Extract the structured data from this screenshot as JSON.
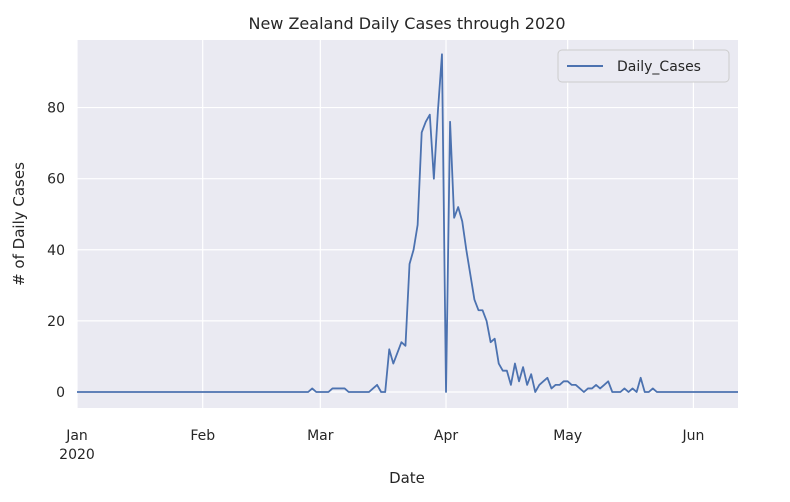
{
  "chart_data": {
    "type": "line",
    "title": "New Zealand Daily Cases through 2020",
    "xlabel": "Date",
    "ylabel": "# of Daily Cases",
    "x_ticks": [
      {
        "date": "2020-01-01",
        "label": "Jan",
        "sublabel": "2020"
      },
      {
        "date": "2020-02-01",
        "label": "Feb",
        "sublabel": ""
      },
      {
        "date": "2020-03-01",
        "label": "Mar",
        "sublabel": ""
      },
      {
        "date": "2020-04-01",
        "label": "Apr",
        "sublabel": ""
      },
      {
        "date": "2020-05-01",
        "label": "May",
        "sublabel": ""
      },
      {
        "date": "2020-06-01",
        "label": "Jun",
        "sublabel": ""
      }
    ],
    "y_ticks": [
      0,
      20,
      40,
      60,
      80
    ],
    "xlim": [
      "2020-01-01",
      "2020-06-12"
    ],
    "ylim": [
      -4.5,
      99
    ],
    "grid": true,
    "legend_position": "top-right",
    "colors": {
      "line": "#4c72b0",
      "plot_bg": "#eaeaf2",
      "grid": "#ffffff"
    },
    "series": [
      {
        "name": "Daily_Cases",
        "x": [
          "2020-01-01",
          "2020-02-27",
          "2020-02-28",
          "2020-02-29",
          "2020-03-01",
          "2020-03-02",
          "2020-03-03",
          "2020-03-04",
          "2020-03-05",
          "2020-03-06",
          "2020-03-07",
          "2020-03-08",
          "2020-03-09",
          "2020-03-10",
          "2020-03-11",
          "2020-03-12",
          "2020-03-13",
          "2020-03-14",
          "2020-03-15",
          "2020-03-16",
          "2020-03-17",
          "2020-03-18",
          "2020-03-19",
          "2020-03-20",
          "2020-03-21",
          "2020-03-22",
          "2020-03-23",
          "2020-03-24",
          "2020-03-25",
          "2020-03-26",
          "2020-03-27",
          "2020-03-28",
          "2020-03-29",
          "2020-03-30",
          "2020-03-31",
          "2020-04-01",
          "2020-04-02",
          "2020-04-03",
          "2020-04-04",
          "2020-04-05",
          "2020-04-06",
          "2020-04-07",
          "2020-04-08",
          "2020-04-09",
          "2020-04-10",
          "2020-04-11",
          "2020-04-12",
          "2020-04-13",
          "2020-04-14",
          "2020-04-15",
          "2020-04-16",
          "2020-04-17",
          "2020-04-18",
          "2020-04-19",
          "2020-04-20",
          "2020-04-21",
          "2020-04-22",
          "2020-04-23",
          "2020-04-24",
          "2020-04-25",
          "2020-04-26",
          "2020-04-27",
          "2020-04-28",
          "2020-04-29",
          "2020-04-30",
          "2020-05-01",
          "2020-05-02",
          "2020-05-03",
          "2020-05-04",
          "2020-05-05",
          "2020-05-06",
          "2020-05-07",
          "2020-05-08",
          "2020-05-09",
          "2020-05-10",
          "2020-05-11",
          "2020-05-12",
          "2020-05-13",
          "2020-05-14",
          "2020-05-15",
          "2020-05-16",
          "2020-05-17",
          "2020-05-18",
          "2020-05-19",
          "2020-05-20",
          "2020-05-21",
          "2020-05-22",
          "2020-05-23",
          "2020-05-24",
          "2020-05-25",
          "2020-06-12"
        ],
        "y": [
          0,
          0,
          1,
          0,
          0,
          0,
          0,
          1,
          1,
          1,
          1,
          0,
          0,
          0,
          0,
          0,
          0,
          1,
          2,
          0,
          0,
          12,
          8,
          11,
          14,
          13,
          36,
          40,
          47,
          73,
          76,
          78,
          60,
          79,
          95,
          0,
          76,
          49,
          52,
          48,
          40,
          33,
          26,
          23,
          23,
          20,
          14,
          15,
          8,
          6,
          6,
          2,
          8,
          3,
          7,
          2,
          5,
          0,
          2,
          3,
          4,
          1,
          2,
          2,
          3,
          3,
          2,
          2,
          1,
          0,
          1,
          1,
          2,
          1,
          2,
          3,
          0,
          0,
          0,
          1,
          0,
          1,
          0,
          4,
          0,
          0,
          1,
          0,
          0,
          0,
          0
        ]
      }
    ]
  }
}
